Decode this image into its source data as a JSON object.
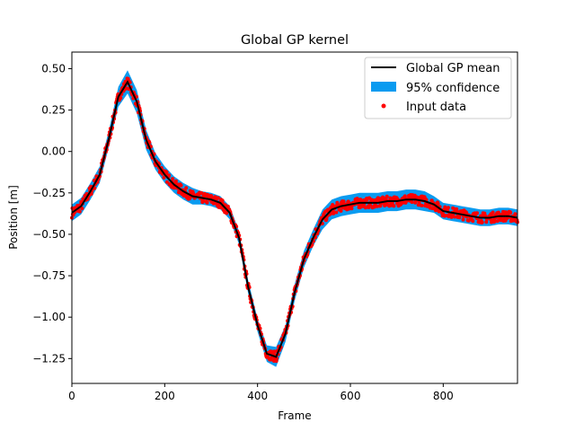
{
  "chart_data": {
    "type": "line",
    "title": "Global GP kernel",
    "xlabel": "Frame",
    "ylabel": "Position [m]",
    "xlim": [
      0,
      960
    ],
    "ylim": [
      -1.4,
      0.6
    ],
    "xticks": [
      0,
      200,
      400,
      600,
      800
    ],
    "xtick_labels": [
      "0",
      "200",
      "400",
      "600",
      "800"
    ],
    "yticks": [
      0.5,
      0.25,
      0.0,
      -0.25,
      -0.5,
      -0.75,
      -1.0,
      -1.25
    ],
    "ytick_labels": [
      "0.50",
      "0.25",
      "0.00",
      "−0.25",
      "−0.50",
      "−0.75",
      "−1.00",
      "−1.25"
    ],
    "grid": false,
    "legend_position": "top-right",
    "legend": [
      "Global GP mean",
      "95% confidence",
      "Input data"
    ],
    "colors": {
      "mean": "#000000",
      "confidence": "#0a9bf0",
      "data": "#ff0000"
    },
    "series": [
      {
        "name": "Global GP mean",
        "type": "line",
        "x": [
          0,
          20,
          40,
          60,
          80,
          100,
          120,
          140,
          160,
          180,
          200,
          220,
          240,
          260,
          280,
          300,
          320,
          340,
          360,
          380,
          400,
          420,
          440,
          460,
          480,
          500,
          520,
          540,
          560,
          580,
          600,
          620,
          640,
          660,
          680,
          700,
          720,
          740,
          760,
          780,
          800,
          820,
          840,
          860,
          880,
          900,
          920,
          940,
          960
        ],
        "y": [
          -0.37,
          -0.33,
          -0.24,
          -0.14,
          0.08,
          0.33,
          0.42,
          0.3,
          0.07,
          -0.06,
          -0.14,
          -0.2,
          -0.24,
          -0.27,
          -0.28,
          -0.29,
          -0.31,
          -0.37,
          -0.52,
          -0.82,
          -1.05,
          -1.22,
          -1.24,
          -1.1,
          -0.85,
          -0.65,
          -0.52,
          -0.41,
          -0.35,
          -0.33,
          -0.32,
          -0.31,
          -0.31,
          -0.31,
          -0.3,
          -0.3,
          -0.29,
          -0.29,
          -0.3,
          -0.32,
          -0.36,
          -0.37,
          -0.38,
          -0.39,
          -0.4,
          -0.4,
          -0.39,
          -0.39,
          -0.4
        ]
      },
      {
        "name": "95% confidence",
        "type": "band",
        "half_width": [
          0.05,
          0.05,
          0.05,
          0.05,
          0.05,
          0.06,
          0.07,
          0.07,
          0.06,
          0.05,
          0.05,
          0.05,
          0.05,
          0.05,
          0.04,
          0.04,
          0.04,
          0.04,
          0.04,
          0.04,
          0.04,
          0.05,
          0.06,
          0.05,
          0.05,
          0.05,
          0.05,
          0.06,
          0.06,
          0.06,
          0.06,
          0.06,
          0.06,
          0.06,
          0.06,
          0.06,
          0.06,
          0.06,
          0.06,
          0.05,
          0.05,
          0.05,
          0.05,
          0.05,
          0.05,
          0.05,
          0.05,
          0.05,
          0.05
        ]
      },
      {
        "name": "Input data",
        "type": "scatter",
        "n_points": 960,
        "noise": 0.03
      }
    ]
  }
}
